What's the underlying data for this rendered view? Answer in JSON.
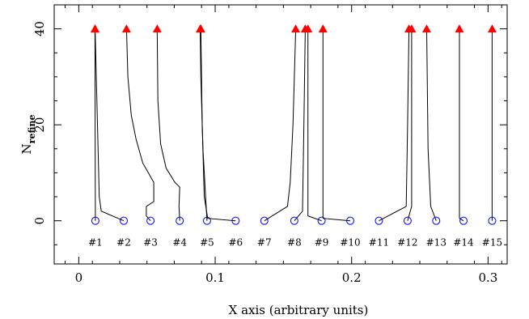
{
  "chart_data": {
    "type": "line",
    "title": "",
    "xlabel": "X axis (arbitrary units)",
    "ylabel_main": "N",
    "ylabel_sub": "refine",
    "xlim": [
      -0.018,
      0.314
    ],
    "ylim": [
      -9,
      45
    ],
    "x_ticks": [
      0,
      0.1,
      0.2,
      0.3
    ],
    "x_tick_labels": [
      "0",
      "0.1",
      "0.2",
      "0.3"
    ],
    "y_ticks": [
      0,
      20,
      40
    ],
    "y_tick_labels": [
      "0",
      "20",
      "40"
    ],
    "label_y": -4.5,
    "start_color": "#0000ff",
    "end_color": "#ff0000",
    "line_color": "#000000",
    "tracks": [
      {
        "label": "#1",
        "points": [
          [
            0.0122,
            0
          ],
          [
            0.0122,
            2
          ],
          [
            0.012,
            20
          ],
          [
            0.0119,
            40
          ]
        ]
      },
      {
        "label": "#2",
        "points": [
          [
            0.033,
            0
          ],
          [
            0.0165,
            2
          ],
          [
            0.015,
            5
          ],
          [
            0.012,
            40
          ]
        ]
      },
      {
        "label": "#3",
        "points": [
          [
            0.0526,
            0
          ],
          [
            0.0495,
            1
          ],
          [
            0.0495,
            3
          ],
          [
            0.055,
            4
          ],
          [
            0.055,
            8
          ],
          [
            0.051,
            10
          ],
          [
            0.047,
            12
          ],
          [
            0.042,
            17
          ],
          [
            0.0385,
            22
          ],
          [
            0.036,
            30
          ],
          [
            0.035,
            40
          ]
        ]
      },
      {
        "label": "#4",
        "points": [
          [
            0.074,
            0
          ],
          [
            0.0735,
            3
          ],
          [
            0.074,
            7
          ],
          [
            0.0705,
            8
          ],
          [
            0.064,
            11
          ],
          [
            0.06,
            16
          ],
          [
            0.058,
            25
          ],
          [
            0.0575,
            40
          ]
        ]
      },
      {
        "label": "#5",
        "points": [
          [
            0.094,
            0
          ],
          [
            0.093,
            5
          ],
          [
            0.091,
            15
          ],
          [
            0.0895,
            30
          ],
          [
            0.089,
            40
          ]
        ]
      },
      {
        "label": "#6",
        "points": [
          [
            0.115,
            0
          ],
          [
            0.0945,
            0.5
          ],
          [
            0.092,
            5
          ],
          [
            0.0905,
            20
          ],
          [
            0.0895,
            40
          ]
        ]
      },
      {
        "label": "#7",
        "points": [
          [
            0.136,
            0
          ],
          [
            0.153,
            3
          ],
          [
            0.155,
            8
          ],
          [
            0.157,
            20
          ],
          [
            0.159,
            40
          ]
        ]
      },
      {
        "label": "#8",
        "points": [
          [
            0.158,
            0
          ],
          [
            0.164,
            2
          ],
          [
            0.165,
            20
          ],
          [
            0.166,
            40
          ]
        ]
      },
      {
        "label": "#9",
        "points": [
          [
            0.178,
            0
          ],
          [
            0.168,
            1
          ],
          [
            0.168,
            40
          ]
        ]
      },
      {
        "label": "#10",
        "points": [
          [
            0.199,
            0
          ],
          [
            0.179,
            0.5
          ],
          [
            0.179,
            40
          ]
        ]
      },
      {
        "label": "#11",
        "points": [
          [
            0.22,
            0
          ],
          [
            0.24,
            3
          ],
          [
            0.241,
            20
          ],
          [
            0.242,
            40
          ]
        ]
      },
      {
        "label": "#12",
        "points": [
          [
            0.241,
            0
          ],
          [
            0.244,
            3
          ],
          [
            0.244,
            40
          ]
        ]
      },
      {
        "label": "#13",
        "points": [
          [
            0.262,
            0
          ],
          [
            0.258,
            3
          ],
          [
            0.256,
            15
          ],
          [
            0.255,
            40
          ]
        ]
      },
      {
        "label": "#14",
        "points": [
          [
            0.282,
            0
          ],
          [
            0.279,
            0.5
          ],
          [
            0.279,
            40
          ]
        ]
      },
      {
        "label": "#15",
        "points": [
          [
            0.303,
            0
          ],
          [
            0.303,
            40
          ]
        ]
      }
    ]
  }
}
